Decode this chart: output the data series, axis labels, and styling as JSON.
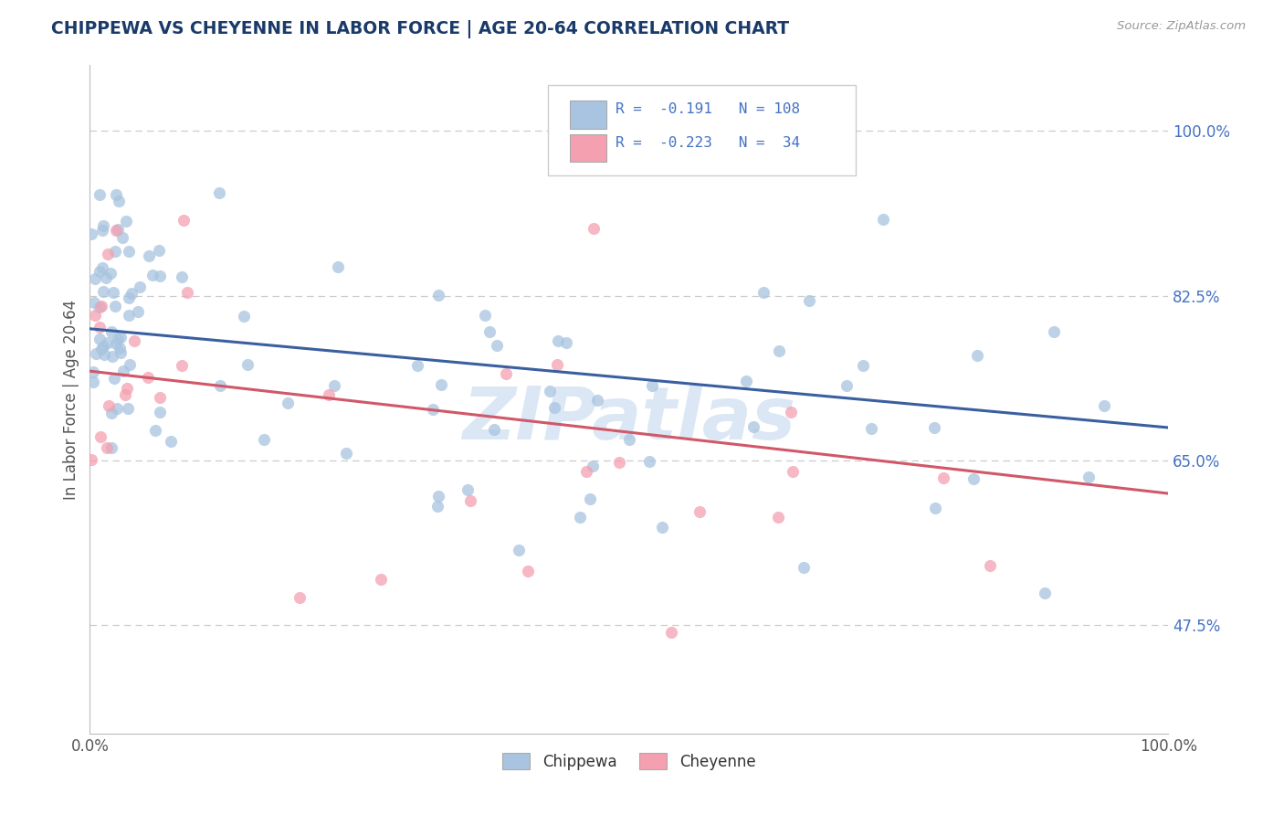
{
  "title": "CHIPPEWA VS CHEYENNE IN LABOR FORCE | AGE 20-64 CORRELATION CHART",
  "source_text": "Source: ZipAtlas.com",
  "ylabel": "In Labor Force | Age 20-64",
  "xlim": [
    0.0,
    1.0
  ],
  "ylim": [
    0.36,
    1.07
  ],
  "yticks": [
    0.475,
    0.65,
    0.825,
    1.0
  ],
  "ytick_labels": [
    "47.5%",
    "65.0%",
    "82.5%",
    "100.0%"
  ],
  "xticks": [
    0.0,
    1.0
  ],
  "xtick_labels": [
    "0.0%",
    "100.0%"
  ],
  "chippewa_color": "#a8c4e0",
  "cheyenne_color": "#f4a0b0",
  "chippewa_line_color": "#3a5fa0",
  "cheyenne_line_color": "#d05868",
  "watermark": "ZIPatlas",
  "background_color": "#ffffff",
  "grid_color": "#cccccc",
  "title_color": "#1a3a6a",
  "label_color": "#4472c4",
  "R_chip": "-0.191",
  "N_chip": "108",
  "R_chey": "-0.223",
  "N_chey": "34"
}
